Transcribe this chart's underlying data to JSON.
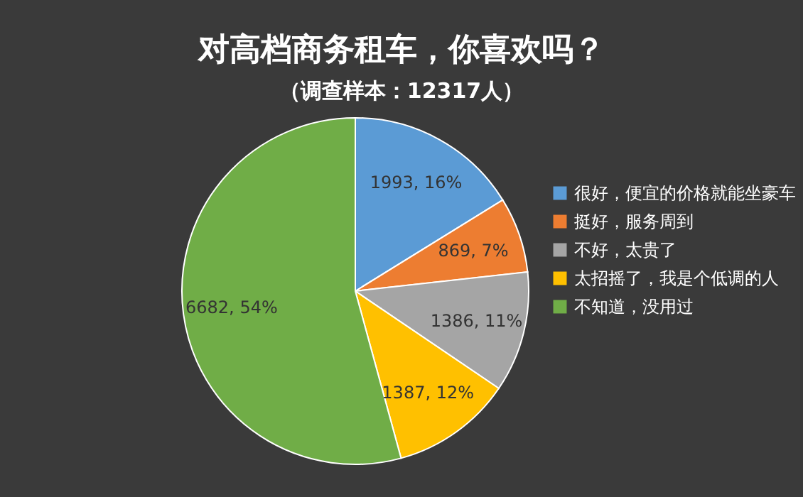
{
  "chart_data": {
    "type": "pie",
    "title": "对高档商务租车，你喜欢吗？",
    "subtitle": "（调查样本：12317人）",
    "categories": [
      "很好，便宜的价格就能坐豪车",
      "挺好，服务周到",
      "不好，太贵了",
      "太招摇了，我是个低调的人",
      "不知道，没用过"
    ],
    "values": [
      1993,
      869,
      1386,
      1387,
      6682
    ],
    "value_labels": [
      "1993, 16%",
      "869, 7%",
      "1386, 11%",
      "1387, 12%",
      "6682, 54%"
    ],
    "colors": [
      "#5b9bd5",
      "#ed7d31",
      "#a5a5a5",
      "#ffc000",
      "#70ad47"
    ],
    "legend": "right"
  }
}
